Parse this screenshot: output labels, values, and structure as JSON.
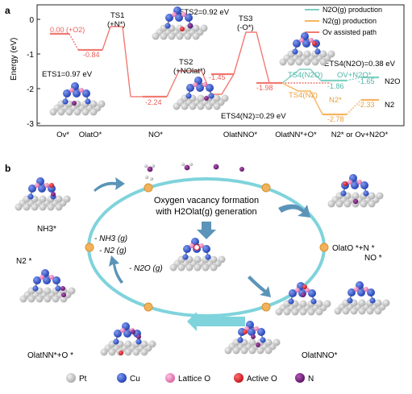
{
  "panel_a": {
    "label": "a",
    "y_axis_title": "Energy (eV)",
    "y_ticks": [
      "0",
      "-1",
      "-2",
      "-3"
    ],
    "x_ticks": [
      "Ov*",
      "OlatO*",
      "NO*",
      "OlatNNO*",
      "OlatNN*+O*",
      "N2* or Ov+N2O*"
    ],
    "legend": [
      "N2O(g) production",
      "N2(g) production",
      "Ov assisted path"
    ],
    "colors": {
      "red": "#f07a72",
      "teal": "#7fcfc3",
      "orange": "#f5b561",
      "axis": "#222222"
    },
    "values": {
      "ov": "0.00 (+O2)",
      "olat": "-0.84",
      "no": "-2.24",
      "ts2v": "-1.45",
      "olatnn": "-1.98",
      "n2o_ov": "-1.86",
      "n2o_right": "-1.65",
      "ts4v": "-2.78",
      "n2_right": "-2.33"
    },
    "labels": {
      "ts1": "TS1",
      "ts1_sub": "(+N*)",
      "ets1": "ETS1=0.97 eV",
      "ets2": "ETS2=0.92 eV",
      "ts2": "TS2",
      "ts2_sub": "(+NOlat*)",
      "ts3": "TS3",
      "ts3_sub": "(-O*)",
      "ets4n2": "ETS4(N2)=0.29 eV",
      "ets4n2o": "ETS4(N2O)=0.38 eV",
      "ts4n2o": "TS4(N2O)",
      "ov_n2o": "OV+N2O*",
      "ts4n2": "TS4(N2)",
      "n2star": "N2*",
      "right_n2o": "N2O",
      "right_n2": "N2"
    }
  },
  "panel_b": {
    "label": "b",
    "cycle_title_1": "Oxygen vacancy formation",
    "cycle_title_2": "with H2Olat(g) generation",
    "releases": [
      "- NH3 (g)",
      "- N2 (g)",
      "- N2O (g)"
    ],
    "states": {
      "nh3": "NH3*",
      "olat_o_n": "OlatO *+N *",
      "no": "NO *",
      "olatnno": "OlatNNO*",
      "olatnn_o": "OlatNN*+O *",
      "n2": "N2 *"
    },
    "legend": [
      "Pt",
      "Cu",
      "Lattice O",
      "Active O",
      "N"
    ],
    "legend_colors": [
      "#c8c8c8",
      "#3355cc",
      "#ee88c0",
      "#e51c24",
      "#7b1a7f"
    ]
  }
}
